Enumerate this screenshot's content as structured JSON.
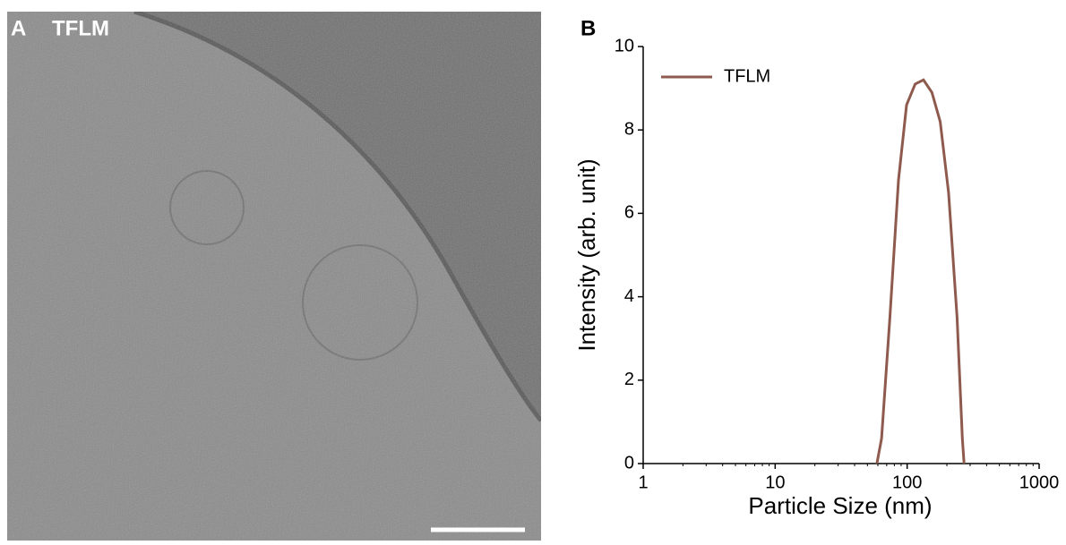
{
  "panel_a": {
    "label": "A",
    "title": "TFLM"
  },
  "chart_data": {
    "type": "line",
    "panel_label": "B",
    "x_label": "Particle Size (nm)",
    "y_label": "Intensity (arb. unit)",
    "x": [
      59,
      64,
      74,
      86,
      99,
      115,
      133,
      154,
      178,
      206,
      239,
      262,
      270
    ],
    "series": [
      {
        "name": "TFLM",
        "color": "#8e5a4e",
        "values": [
          0,
          0.6,
          3.5,
          6.8,
          8.6,
          9.1,
          9.2,
          8.9,
          8.2,
          6.5,
          3.5,
          0.6,
          0
        ]
      }
    ],
    "xlim": [
      1,
      1000
    ],
    "xticks": [
      1,
      10,
      100,
      1000
    ],
    "x_log": true,
    "ylim": [
      0,
      10
    ],
    "yticks": [
      0,
      2,
      4,
      6,
      8,
      10
    ],
    "grid": false,
    "legend": "upper left"
  }
}
